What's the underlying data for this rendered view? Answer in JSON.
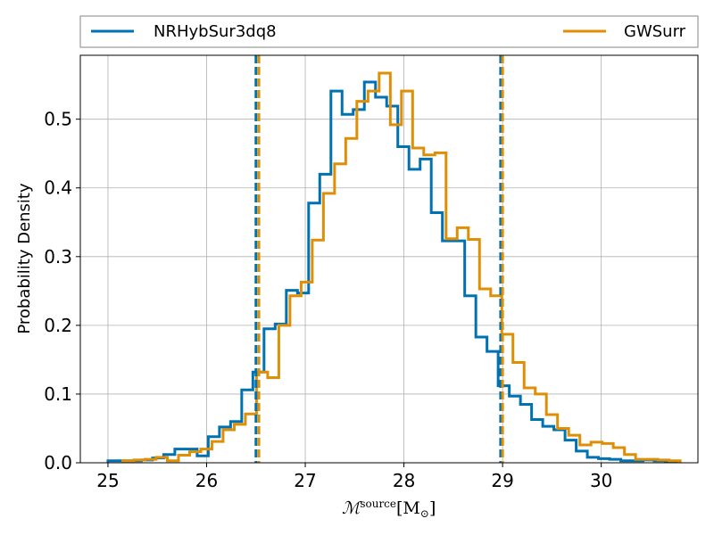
{
  "chart_data": {
    "type": "histogram",
    "xlabel": {
      "main": "ℳ",
      "sup": "source",
      "unit": "[M",
      "unit_sub": "⊙",
      "close": "]"
    },
    "ylabel": "Probability Density",
    "xlim": [
      24.72,
      30.98
    ],
    "ylim": [
      0.0,
      0.593
    ],
    "xticks": [
      25,
      26,
      27,
      28,
      29,
      30
    ],
    "yticks": [
      0.0,
      0.1,
      0.2,
      0.3,
      0.4,
      0.5
    ],
    "xtick_labels": [
      "25",
      "26",
      "27",
      "28",
      "29",
      "30"
    ],
    "ytick_labels": [
      "0.0",
      "0.1",
      "0.2",
      "0.3",
      "0.4",
      "0.5"
    ],
    "grid": true,
    "legend": {
      "placement": "top, outside plot"
    },
    "series": [
      {
        "name": "NRHybSur3dq8",
        "color": "#0072b2",
        "bin_start": 25.0,
        "bin_width": 0.113,
        "values": [
          0.003,
          0.003,
          0.003,
          0.004,
          0.007,
          0.012,
          0.02,
          0.02,
          0.01,
          0.038,
          0.052,
          0.06,
          0.106,
          0.132,
          0.195,
          0.202,
          0.251,
          0.247,
          0.378,
          0.42,
          0.541,
          0.507,
          0.514,
          0.554,
          0.532,
          0.519,
          0.46,
          0.427,
          0.442,
          0.364,
          0.323,
          0.323,
          0.243,
          0.183,
          0.162,
          0.112,
          0.097,
          0.085,
          0.063,
          0.053,
          0.048,
          0.033,
          0.017,
          0.008,
          0.006,
          0.005,
          0.003,
          0.003,
          0.004,
          0.003,
          0.002
        ],
        "percentile_lines": [
          26.5,
          28.98
        ]
      },
      {
        "name": "GWSurr",
        "color": "#de8f05",
        "bin_start": 25.15,
        "bin_width": 0.113,
        "values": [
          0.003,
          0.004,
          0.005,
          0.008,
          0.003,
          0.011,
          0.016,
          0.02,
          0.031,
          0.048,
          0.056,
          0.071,
          0.132,
          0.124,
          0.2,
          0.243,
          0.263,
          0.324,
          0.392,
          0.435,
          0.472,
          0.526,
          0.541,
          0.567,
          0.492,
          0.541,
          0.458,
          0.448,
          0.451,
          0.326,
          0.342,
          0.325,
          0.253,
          0.243,
          0.187,
          0.146,
          0.109,
          0.1,
          0.07,
          0.05,
          0.04,
          0.026,
          0.03,
          0.028,
          0.022,
          0.012,
          0.005,
          0.005,
          0.004,
          0.003
        ],
        "percentile_lines": [
          26.53,
          29.0
        ]
      }
    ]
  }
}
